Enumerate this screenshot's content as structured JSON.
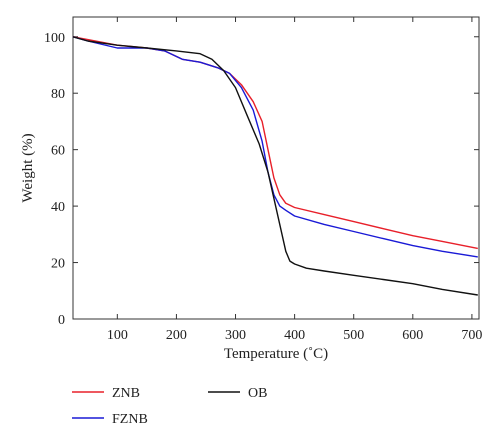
{
  "chart_data": {
    "type": "line",
    "title": "",
    "xlabel": "Temperature (˚C)",
    "ylabel": "Weight (%)",
    "xlim": [
      25,
      712
    ],
    "ylim": [
      0,
      107
    ],
    "xticks": [
      100,
      200,
      300,
      400,
      500,
      600,
      700
    ],
    "yticks": [
      0,
      20,
      40,
      60,
      80,
      100
    ],
    "grid": false,
    "legend_position": "below",
    "series": [
      {
        "name": "ZNB",
        "color": "#e8202a",
        "x": [
          25,
          50,
          100,
          150,
          180,
          210,
          240,
          270,
          290,
          310,
          330,
          345,
          355,
          365,
          375,
          385,
          400,
          450,
          500,
          550,
          600,
          650,
          710
        ],
        "y": [
          100,
          99,
          97,
          96,
          95,
          92,
          91,
          89,
          87,
          83,
          77,
          70,
          60,
          50,
          44,
          41,
          39.5,
          37,
          34.5,
          32,
          29.5,
          27.5,
          25
        ]
      },
      {
        "name": "FZNB",
        "color": "#1a1ad6",
        "x": [
          25,
          50,
          100,
          150,
          180,
          210,
          240,
          270,
          290,
          310,
          330,
          345,
          355,
          365,
          375,
          385,
          400,
          450,
          500,
          550,
          600,
          650,
          710
        ],
        "y": [
          100,
          98.5,
          96,
          96,
          95,
          92,
          91,
          89,
          87,
          82,
          74,
          63,
          52,
          44,
          40,
          38.5,
          36.5,
          33.5,
          31,
          28.5,
          26,
          24,
          22
        ]
      },
      {
        "name": "OB",
        "color": "#111111",
        "x": [
          25,
          50,
          100,
          150,
          200,
          240,
          260,
          280,
          300,
          320,
          340,
          355,
          370,
          385,
          392,
          400,
          420,
          450,
          500,
          550,
          600,
          650,
          710
        ],
        "y": [
          100,
          98.5,
          97,
          96,
          95,
          94,
          92,
          88,
          82,
          72,
          62,
          52,
          38,
          24,
          20.5,
          19.5,
          18,
          17,
          15.5,
          14,
          12.5,
          10.5,
          8.5
        ]
      }
    ]
  }
}
